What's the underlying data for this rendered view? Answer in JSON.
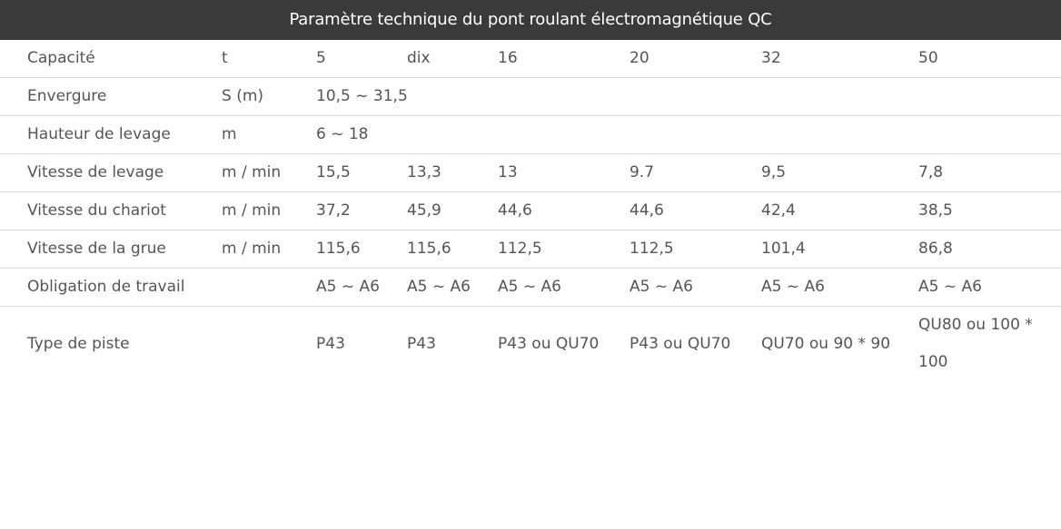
{
  "table": {
    "caption": "Paramètre technique du pont roulant électromagnétique QC",
    "rows": [
      {
        "label": "Capacité",
        "unit": "t",
        "cells": [
          "5",
          "dix",
          "16",
          "20",
          "32",
          "50"
        ]
      },
      {
        "label": "Envergure",
        "unit": "S (m)",
        "cells": [
          "10,5 ~ 31,5"
        ]
      },
      {
        "label": "Hauteur de levage",
        "unit": "m",
        "cells": [
          "6 ~ 18"
        ]
      },
      {
        "label": "Vitesse de levage",
        "unit": "m / min",
        "cells": [
          "15,5",
          "13,3",
          "13",
          "9.7",
          "9,5",
          "7,8"
        ]
      },
      {
        "label": "Vitesse du chariot",
        "unit": "m / min",
        "cells": [
          "37,2",
          "45,9",
          "44,6",
          "44,6",
          "42,4",
          "38,5"
        ]
      },
      {
        "label": "Vitesse de la grue",
        "unit": "m / min",
        "cells": [
          "115,6",
          "115,6",
          "112,5",
          "112,5",
          "101,4",
          "86,8"
        ]
      },
      {
        "label": "Obligation de travail",
        "unit": "",
        "cells": [
          "A5 ~ A6",
          "A5 ~ A6",
          "A5 ~ A6",
          "A5 ~ A6",
          "A5 ~ A6",
          "A5 ~ A6"
        ]
      },
      {
        "label": "Type de piste",
        "unit": "",
        "cells": [
          "P43",
          "P43",
          "P43 ou QU70",
          "P43 ou QU70",
          "QU70 ou 90 * 90",
          "QU80 ou 100 * 100"
        ]
      }
    ]
  }
}
